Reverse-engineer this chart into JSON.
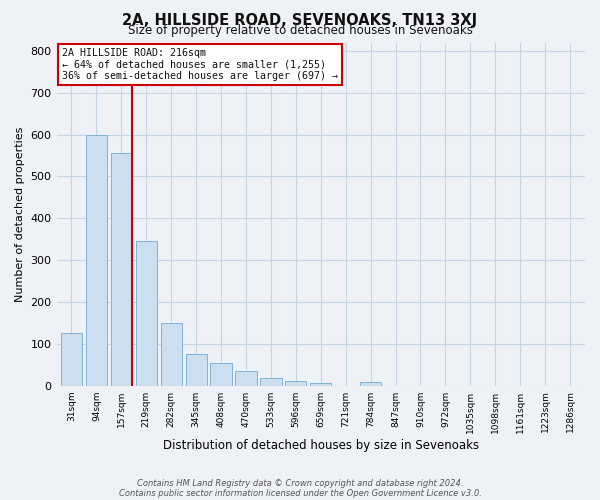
{
  "title": "2A, HILLSIDE ROAD, SEVENOAKS, TN13 3XJ",
  "subtitle": "Size of property relative to detached houses in Sevenoaks",
  "xlabel": "Distribution of detached houses by size in Sevenoaks",
  "ylabel": "Number of detached properties",
  "categories": [
    "31sqm",
    "94sqm",
    "157sqm",
    "219sqm",
    "282sqm",
    "345sqm",
    "408sqm",
    "470sqm",
    "533sqm",
    "596sqm",
    "659sqm",
    "721sqm",
    "784sqm",
    "847sqm",
    "910sqm",
    "972sqm",
    "1035sqm",
    "1098sqm",
    "1161sqm",
    "1223sqm",
    "1286sqm"
  ],
  "values": [
    125,
    600,
    555,
    345,
    150,
    75,
    55,
    35,
    18,
    12,
    7,
    0,
    8,
    0,
    0,
    0,
    0,
    0,
    0,
    0,
    0
  ],
  "bar_color": "#ccdff0",
  "bar_edge_color": "#7fb3d9",
  "red_line_index": 2,
  "red_line_label": "2A HILLSIDE ROAD: 216sqm",
  "annotation_line1": "← 64% of detached houses are smaller (1,255)",
  "annotation_line2": "36% of semi-detached houses are larger (697) →",
  "annotation_box_facecolor": "#ffffff",
  "annotation_box_edgecolor": "#cc0000",
  "red_line_color": "#cc0000",
  "grid_color": "#c5d5e5",
  "background_color": "#eef2f7",
  "ylim": [
    0,
    820
  ],
  "yticks": [
    0,
    100,
    200,
    300,
    400,
    500,
    600,
    700,
    800
  ],
  "footer1": "Contains HM Land Registry data © Crown copyright and database right 2024.",
  "footer2": "Contains public sector information licensed under the Open Government Licence v3.0."
}
